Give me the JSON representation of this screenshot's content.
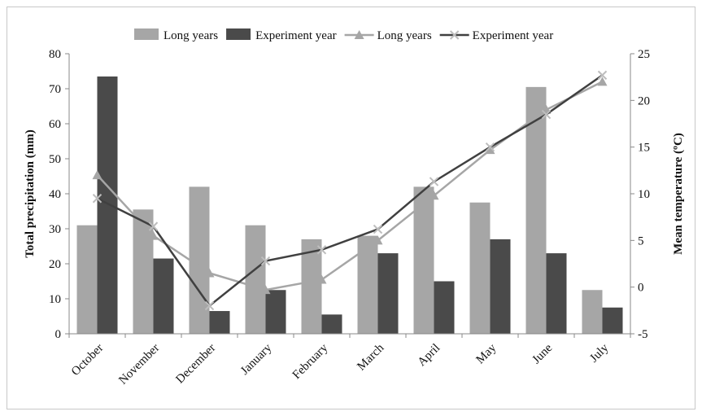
{
  "chart_data": {
    "type": "bar",
    "categories": [
      "October",
      "November",
      "December",
      "January",
      "February",
      "March",
      "April",
      "May",
      "June",
      "July"
    ],
    "series": [
      {
        "name": "Long years",
        "type": "bar",
        "axis": "left",
        "color": "#a6a6a6",
        "values": [
          31,
          35.5,
          42,
          31,
          27,
          28,
          42,
          37.5,
          70.5,
          12.5
        ]
      },
      {
        "name": "Experiment year",
        "type": "bar",
        "axis": "left",
        "color": "#4a4a4a",
        "values": [
          73.5,
          21.5,
          6.5,
          12.5,
          5.5,
          23,
          15,
          27,
          23,
          7.5
        ]
      },
      {
        "name": "Long years",
        "type": "line",
        "axis": "right",
        "color": "#a6a6a6",
        "marker": "triangle",
        "values": [
          12,
          5.5,
          1.5,
          -0.3,
          0.8,
          5,
          9.8,
          14.7,
          19,
          22
        ]
      },
      {
        "name": "Experiment year",
        "type": "line",
        "axis": "right",
        "color": "#404040",
        "marker": "x",
        "values": [
          9.5,
          6.5,
          -2,
          2.8,
          4,
          6.2,
          11.3,
          15,
          18.5,
          22.7
        ]
      }
    ],
    "ylabel": "Total precipitation (mm)",
    "y2label": "Mean temperature (ºC)",
    "ylim": [
      0,
      80
    ],
    "yticks": [
      0,
      10,
      20,
      30,
      40,
      50,
      60,
      70,
      80
    ],
    "y2lim": [
      -5,
      25
    ],
    "y2ticks": [
      -5,
      0,
      5,
      10,
      15,
      20,
      25
    ],
    "grid": false,
    "legend_position": "top"
  }
}
